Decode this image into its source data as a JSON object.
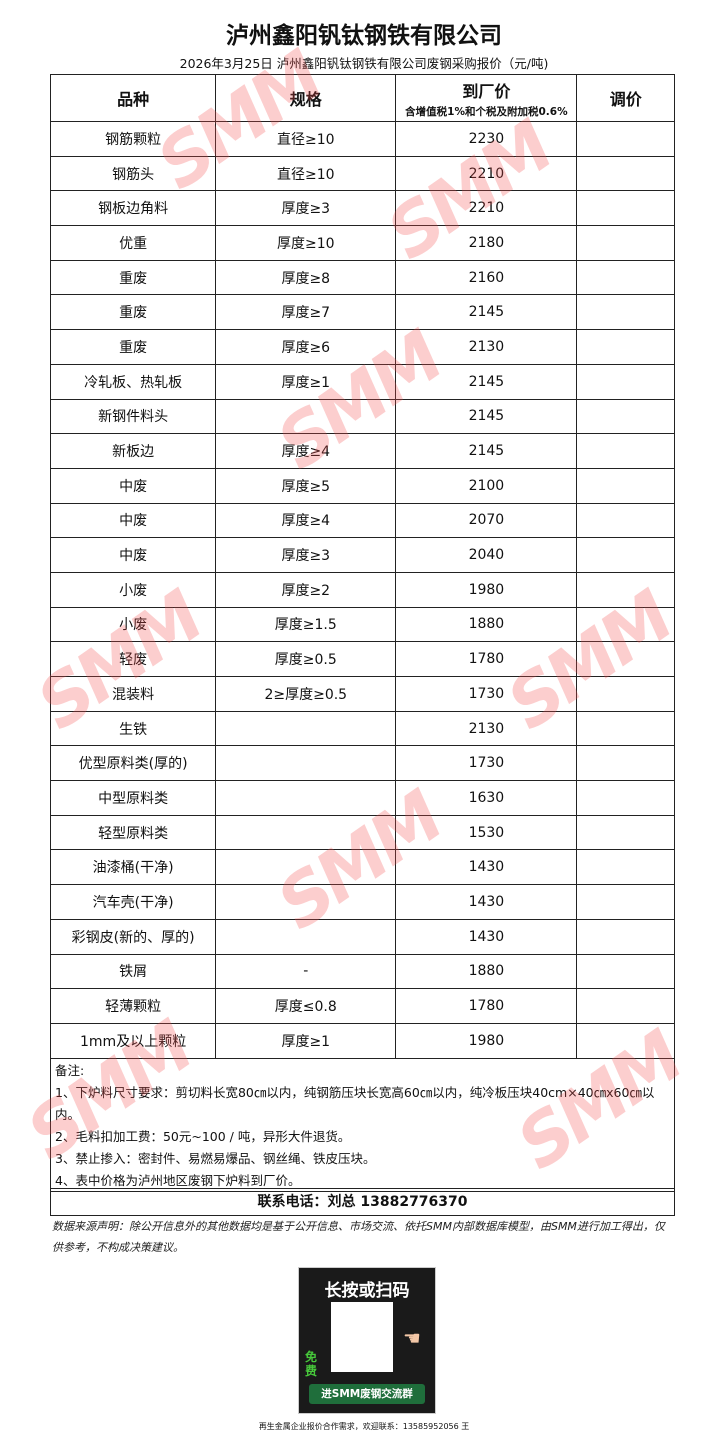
{
  "title": "泸州鑫阳钒钛钢铁有限公司",
  "subtitle": "2026年3月25日 泸州鑫阳钒钛钢铁有限公司废钢采购报价（元/吨)",
  "table": {
    "headers": {
      "variety": "品种",
      "spec": "规格",
      "price": "到厂价",
      "price_note": "含增值税1%和个税及附加税0.6%",
      "adjust": "调价"
    },
    "rows": [
      {
        "variety": "钢筋颗粒",
        "spec": "直径≥10",
        "price": "2230",
        "adjust": ""
      },
      {
        "variety": "钢筋头",
        "spec": "直径≥10",
        "price": "2210",
        "adjust": ""
      },
      {
        "variety": "钢板边角料",
        "spec": "厚度≥3",
        "price": "2210",
        "adjust": ""
      },
      {
        "variety": "优重",
        "spec": "厚度≥10",
        "price": "2180",
        "adjust": ""
      },
      {
        "variety": "重废",
        "spec": "厚度≥8",
        "price": "2160",
        "adjust": ""
      },
      {
        "variety": "重废",
        "spec": "厚度≥7",
        "price": "2145",
        "adjust": ""
      },
      {
        "variety": "重废",
        "spec": "厚度≥6",
        "price": "2130",
        "adjust": ""
      },
      {
        "variety": "冷轧板、热轧板",
        "spec": "厚度≥1",
        "price": "2145",
        "adjust": ""
      },
      {
        "variety": "新钢件料头",
        "spec": "",
        "price": "2145",
        "adjust": ""
      },
      {
        "variety": "新板边",
        "spec": "厚度≥4",
        "price": "2145",
        "adjust": ""
      },
      {
        "variety": "中废",
        "spec": "厚度≥5",
        "price": "2100",
        "adjust": ""
      },
      {
        "variety": "中废",
        "spec": "厚度≥4",
        "price": "2070",
        "adjust": ""
      },
      {
        "variety": "中废",
        "spec": "厚度≥3",
        "price": "2040",
        "adjust": ""
      },
      {
        "variety": "小废",
        "spec": "厚度≥2",
        "price": "1980",
        "adjust": ""
      },
      {
        "variety": "小废",
        "spec": "厚度≥1.5",
        "price": "1880",
        "adjust": ""
      },
      {
        "variety": "轻废",
        "spec": "厚度≥0.5",
        "price": "1780",
        "adjust": ""
      },
      {
        "variety": "混装料",
        "spec": "2≥厚度≥0.5",
        "price": "1730",
        "adjust": ""
      },
      {
        "variety": "生铁",
        "spec": "",
        "price": "2130",
        "adjust": ""
      },
      {
        "variety": "优型原料类(厚的)",
        "spec": "",
        "price": "1730",
        "adjust": ""
      },
      {
        "variety": "中型原料类",
        "spec": "",
        "price": "1630",
        "adjust": ""
      },
      {
        "variety": "轻型原料类",
        "spec": "",
        "price": "1530",
        "adjust": ""
      },
      {
        "variety": "油漆桶(干净)",
        "spec": "",
        "price": "1430",
        "adjust": ""
      },
      {
        "variety": "汽车壳(干净)",
        "spec": "",
        "price": "1430",
        "adjust": ""
      },
      {
        "variety": "彩钢皮(新的、厚的)",
        "spec": "",
        "price": "1430",
        "adjust": ""
      },
      {
        "variety": "铁屑",
        "spec": "-",
        "price": "1880",
        "adjust": ""
      },
      {
        "variety": "轻薄颗粒",
        "spec": "厚度≤0.8",
        "price": "1780",
        "adjust": ""
      },
      {
        "variety": "1mm及以上颗粒",
        "spec": "厚度≥1",
        "price": "1980",
        "adjust": ""
      }
    ]
  },
  "notes": {
    "label": "备注:",
    "items": [
      "1、下炉料尺寸要求：剪切料长宽80㎝以内，纯钢筋压块长宽高60㎝以内，纯冷板压块40cm×40㎝x60㎝以内。",
      "2、毛料扣加工费：50元~100 / 吨，异形大件退货。",
      "3、禁止掺入：密封件、易燃易爆品、钢丝绳、铁皮压块。",
      "4、表中价格为泸州地区废钢下炉料到厂价。"
    ]
  },
  "contact": "联系电话：刘总 13882776370",
  "disclaimer": "数据来源声明：除公开信息外的其他数据均是基于公开信息、市场交流、依托SMM内部数据库模型，由SMM进行加工得出，仅供参考，不构成决策建议。",
  "qr": {
    "heading": "长按或扫码",
    "free": "免费",
    "button": "进SMM废钢交流群"
  },
  "footer": "再生金属企业报价合作需求，欢迎联系：13585952056 王",
  "watermark": "SMM",
  "colors": {
    "watermark": "#f55050",
    "qr_button": "#1f6e3b"
  }
}
